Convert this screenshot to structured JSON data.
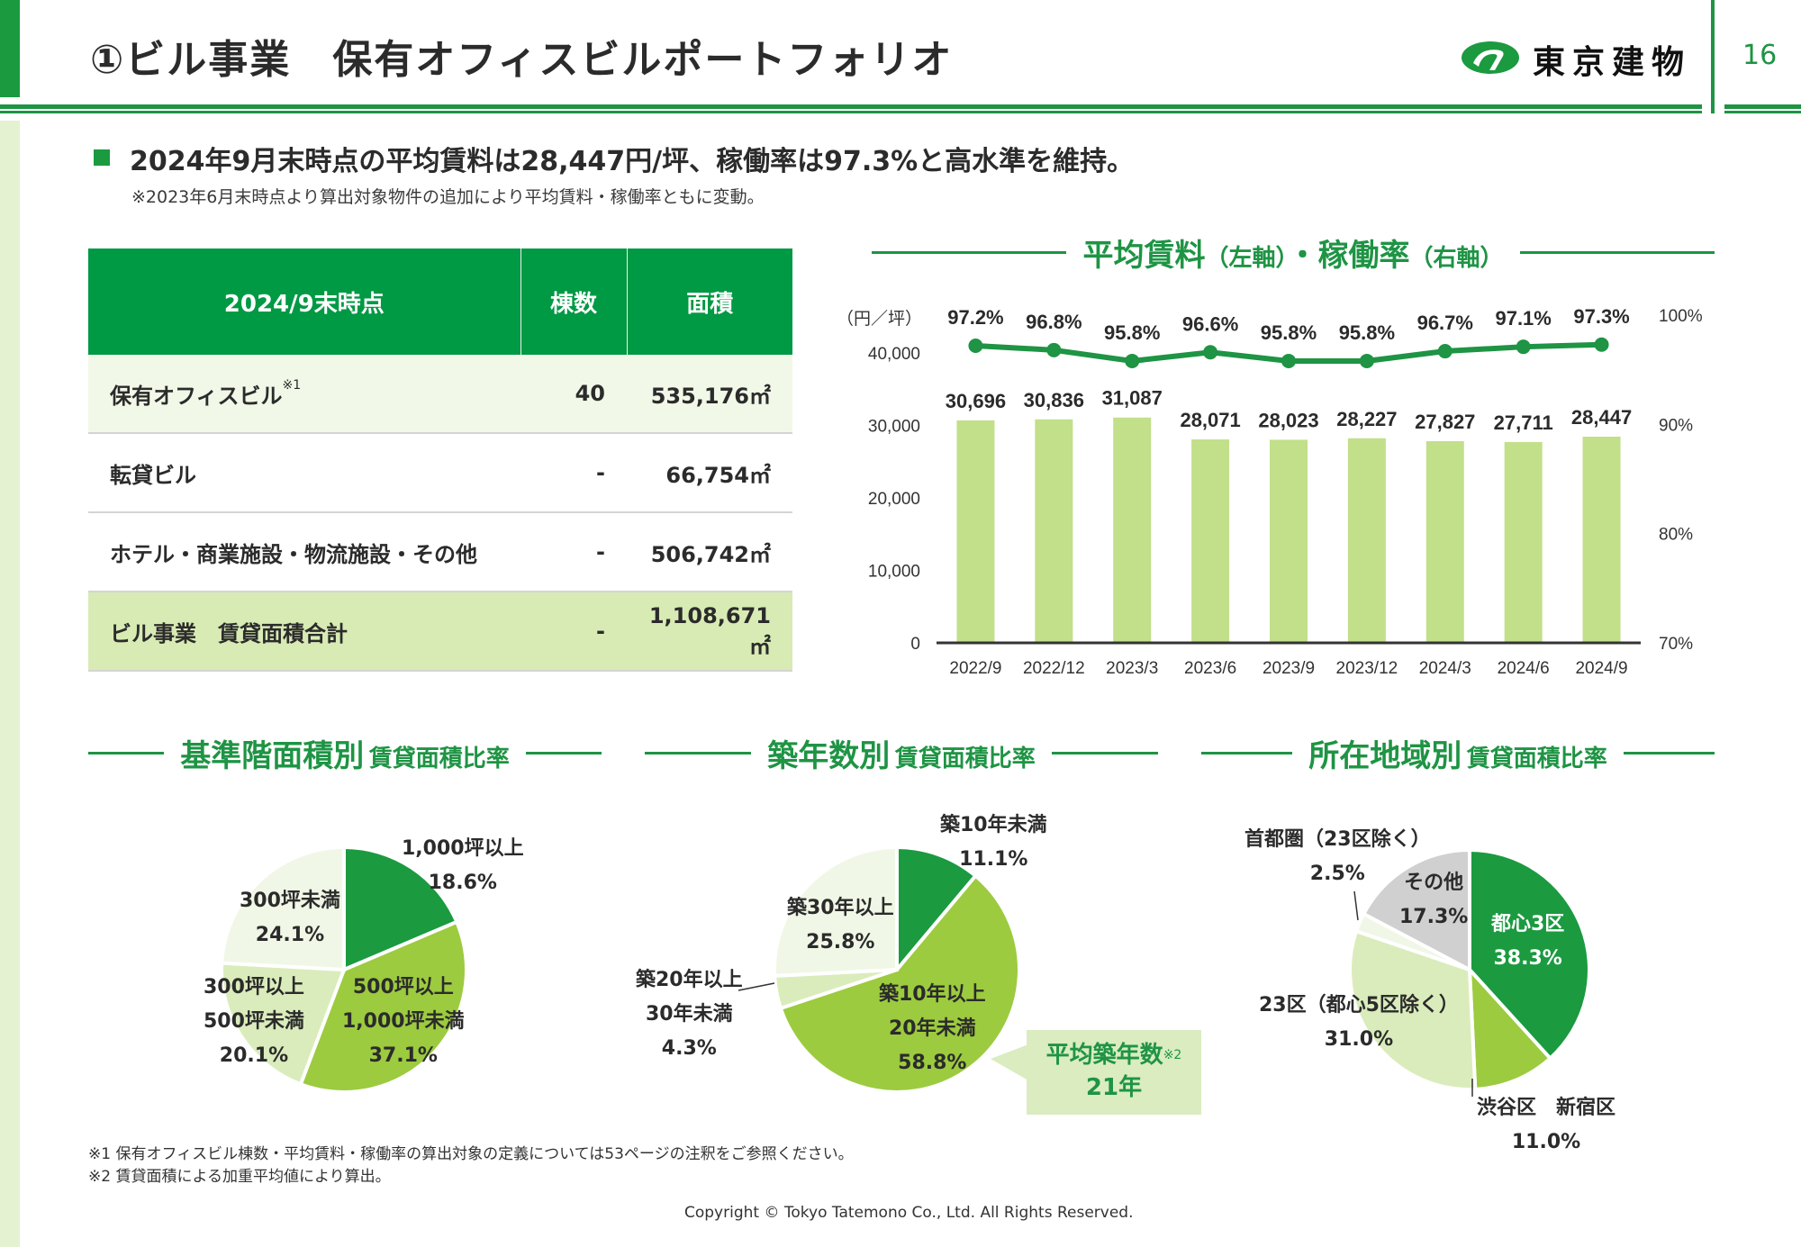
{
  "header": {
    "title": "①ビル事業　保有オフィスビルポートフォリオ",
    "company_name": "東京建物",
    "page_number": "16",
    "logo_icon": "tokyo-tatemono-logo-icon"
  },
  "summary": {
    "headline": "2024年9月末時点の平均賃料は28,447円/坪、稼働率は97.3%と高水準を維持。",
    "note": "※2023年6月末時点より算出対象物件の追加により平均賃料・稼働率ともに変動。"
  },
  "table": {
    "headers": [
      "2024/9末時点",
      "棟数",
      "面積"
    ],
    "rows": [
      {
        "label": "保有オフィスビル",
        "sup": "※1",
        "count": "40",
        "area": "535,176㎡"
      },
      {
        "label": "転貸ビル",
        "sup": "",
        "count": "-",
        "area": "66,754㎡"
      },
      {
        "label": "ホテル・商業施設・物流施設・その他",
        "sup": "",
        "count": "-",
        "area": "506,742㎡"
      },
      {
        "label": "ビル事業　賃貸面積合計",
        "sup": "",
        "count": "-",
        "area": "1,108,671㎡"
      }
    ]
  },
  "chart_data": [
    {
      "type": "bar",
      "title": "平均賃料（左軸）・稼働率（右軸）",
      "title_main1": "平均賃料",
      "title_sub1": "（左軸）",
      "title_main2": "・稼働率",
      "title_sub2": "（右軸）",
      "ylabel": "（円／坪）",
      "categories": [
        "2022/9",
        "2022/12",
        "2023/3",
        "2023/6",
        "2023/9",
        "2023/12",
        "2024/3",
        "2024/6",
        "2024/9"
      ],
      "series": [
        {
          "name": "平均賃料",
          "type": "bar",
          "axis": "left",
          "color": "#c2df8a",
          "values": [
            30696,
            30836,
            31087,
            28071,
            28023,
            28227,
            27827,
            27711,
            28447
          ],
          "labels": [
            "30,696",
            "30,836",
            "31,087",
            "28,071",
            "28,023",
            "28,227",
            "27,827",
            "27,711",
            "28,447"
          ]
        },
        {
          "name": "稼働率",
          "type": "line",
          "axis": "right",
          "color": "#1e9444",
          "values": [
            97.2,
            96.8,
            95.8,
            96.6,
            95.8,
            95.8,
            96.7,
            97.1,
            97.3
          ],
          "labels": [
            "97.2%",
            "96.8%",
            "95.8%",
            "96.6%",
            "95.8%",
            "95.8%",
            "96.7%",
            "97.1%",
            "97.3%"
          ]
        }
      ],
      "ylim_left": [
        0,
        40000
      ],
      "yticks_left": [
        "0",
        "10,000",
        "20,000",
        "30,000",
        "40,000"
      ],
      "ylim_right": [
        70,
        100
      ],
      "yticks_right": [
        "70%",
        "80%",
        "90%",
        "100%"
      ],
      "grid": false
    },
    {
      "type": "pie",
      "title_main": "基準階面積別",
      "title_sub": "賃貸面積比率",
      "slices": [
        {
          "label": "1,000坪以上",
          "value": 18.6,
          "pct": "18.6%",
          "color": "#1b9a40"
        },
        {
          "label": "500坪以上\n1,000坪未満",
          "value": 37.1,
          "pct": "37.1%",
          "color": "#9ccb3f"
        },
        {
          "label": "300坪以上\n500坪未満",
          "value": 20.1,
          "pct": "20.1%",
          "color": "#daecbb"
        },
        {
          "label": "300坪未満",
          "value": 24.1,
          "pct": "24.1%",
          "color": "#f0f7e6"
        }
      ]
    },
    {
      "type": "pie",
      "title_main": "築年数別",
      "title_sub": "賃貸面積比率",
      "slices": [
        {
          "label": "築10年未満",
          "value": 11.1,
          "pct": "11.1%",
          "color": "#1b9a40"
        },
        {
          "label": "築10年以上\n20年未満",
          "value": 58.8,
          "pct": "58.8%",
          "color": "#9ccb3f"
        },
        {
          "label": "築20年以上\n30年未満",
          "value": 4.3,
          "pct": "4.3%",
          "color": "#daecbb"
        },
        {
          "label": "築30年以上",
          "value": 25.8,
          "pct": "25.8%",
          "color": "#f0f7e6"
        }
      ],
      "callout": {
        "label": "平均築年数",
        "sup": "※2",
        "value": "21年"
      }
    },
    {
      "type": "pie",
      "title_main": "所在地域別",
      "title_sub": "賃貸面積比率",
      "slices": [
        {
          "label": "都心3区",
          "value": 38.3,
          "pct": "38.3%",
          "color": "#1b9a40"
        },
        {
          "label": "渋谷区　新宿区",
          "value": 11.0,
          "pct": "11.0%",
          "color": "#9ccb3f"
        },
        {
          "label": "23区（都心5区除く）",
          "value": 31.0,
          "pct": "31.0%",
          "color": "#daecbb"
        },
        {
          "label": "首都圏（23区除く）",
          "value": 2.5,
          "pct": "2.5%",
          "color": "#f0f7e6"
        },
        {
          "label": "その他",
          "value": 17.3,
          "pct": "17.3%",
          "color": "#d0d0d0"
        }
      ]
    }
  ],
  "footnotes": [
    "※1 保有オフィスビル棟数・平均賃料・稼働率の算出対象の定義については53ページの注釈をご参照ください。",
    "※2 賃貸面積による加重平均値により算出。"
  ],
  "copyright": "Copyright © Tokyo Tatemono Co., Ltd. All Rights Reserved."
}
